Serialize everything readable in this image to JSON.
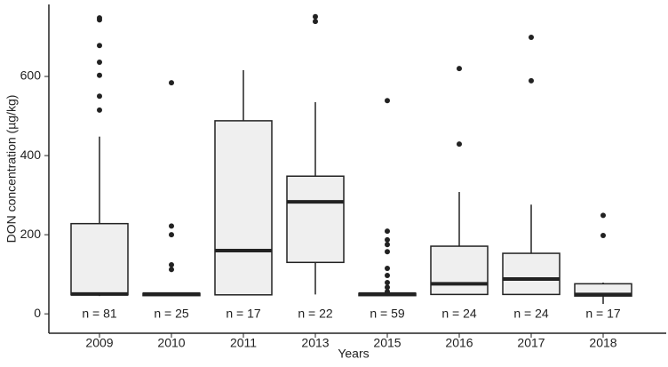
{
  "chart_data": {
    "type": "box",
    "y_label": "DON concentration (µg/kg)",
    "x_label": "Years",
    "categories": [
      "2009",
      "2010",
      "2011",
      "2013",
      "2015",
      "2016",
      "2017",
      "2018"
    ],
    "annotations": [
      "n = 81",
      "n = 25",
      "n = 17",
      "n = 22",
      "n = 59",
      "n = 24",
      "n = 24",
      "n = 17"
    ],
    "boxes": [
      {
        "whislo": 45,
        "q1": 48,
        "med": 50,
        "q3": 228,
        "whishi": 448,
        "outliers": [
          748,
          743,
          678,
          636,
          603,
          550,
          515
        ]
      },
      {
        "whislo": 45,
        "q1": 46,
        "med": 50,
        "q3": 52,
        "whishi": 53,
        "outliers": [
          584,
          222,
          200,
          124,
          112
        ]
      },
      {
        "whislo": 48,
        "q1": 48,
        "med": 160,
        "q3": 488,
        "whishi": 616,
        "outliers": []
      },
      {
        "whislo": 49,
        "q1": 130,
        "med": 283,
        "q3": 348,
        "whishi": 535,
        "outliers": [
          751,
          739
        ]
      },
      {
        "whislo": 45,
        "q1": 46,
        "med": 50,
        "q3": 52,
        "whishi": 55,
        "outliers": [
          539,
          209,
          187,
          175,
          157,
          115,
          97,
          79,
          67,
          56
        ]
      },
      {
        "whislo": 48,
        "q1": 49,
        "med": 76,
        "q3": 171,
        "whishi": 308,
        "outliers": [
          620,
          429
        ]
      },
      {
        "whislo": 48,
        "q1": 49,
        "med": 88,
        "q3": 153,
        "whishi": 276,
        "outliers": [
          699,
          589
        ]
      },
      {
        "whislo": 25,
        "q1": 45,
        "med": 49,
        "q3": 76,
        "whishi": 79,
        "outliers": [
          249,
          198
        ]
      }
    ],
    "box_color": "#efefef",
    "ylim": [
      -49,
      782
    ],
    "yticks": [
      0,
      200,
      400,
      600
    ],
    "grid": false
  }
}
